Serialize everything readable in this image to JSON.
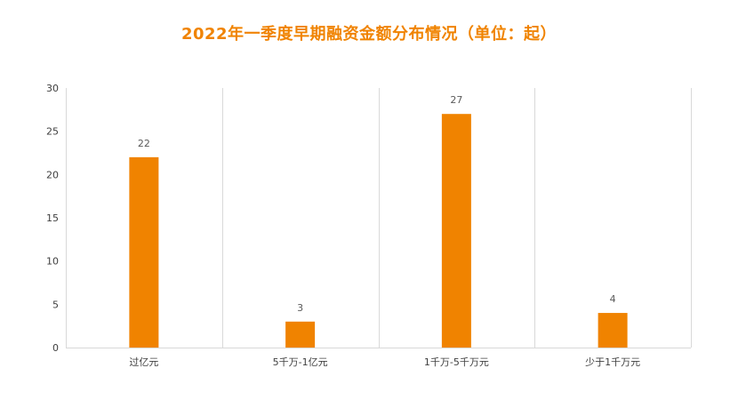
{
  "chart_data": {
    "type": "bar",
    "title": "2022年一季度早期融资金额分布情况（单位：起）",
    "categories": [
      "过亿元",
      "5千万-1亿元",
      "1千万-5千万元",
      "少于1千万元"
    ],
    "values": [
      22,
      3,
      27,
      4
    ],
    "ylim": [
      0,
      30
    ],
    "yticks": [
      0,
      5,
      10,
      15,
      20,
      25,
      30
    ],
    "xlabel": "",
    "ylabel": "",
    "grid": "vertical-category-separators",
    "legend": "none",
    "colors": {
      "bar": "#F08300",
      "title": "#F08300",
      "grid": "#D9D9D9",
      "axis": "#D9D9D9"
    }
  }
}
